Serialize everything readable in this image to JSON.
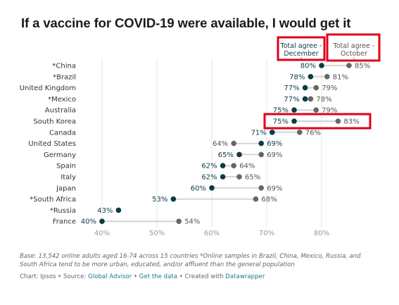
{
  "chart_data": {
    "type": "dot-range",
    "title": "If a vaccine for COVID-19 were available, I would get it",
    "legend": [
      {
        "label_line1": "Total agree -",
        "label_line2": "December",
        "color": "#0d3a45"
      },
      {
        "label_line1": "Total agree -",
        "label_line2": "October",
        "color": "#666666"
      }
    ],
    "x_ticks": [
      40,
      50,
      60,
      70,
      80
    ],
    "x_tick_labels": [
      "40%",
      "50%",
      "60%",
      "70%",
      "80%"
    ],
    "xlim": [
      40,
      80
    ],
    "grid": true,
    "categories": [
      "*China",
      "*Brazil",
      "United Kingdom",
      "*Mexico",
      "Australia",
      "South Korea",
      "Canada",
      "United States",
      "Germany",
      "Spain",
      "Italy",
      "Japan",
      "*South Africa",
      "*Russia",
      "France"
    ],
    "series": [
      {
        "name": "December",
        "values": [
          80,
          78,
          77,
          77,
          75,
          75,
          71,
          69,
          65,
          62,
          62,
          60,
          53,
          43,
          40
        ]
      },
      {
        "name": "October",
        "values": [
          85,
          81,
          79,
          78,
          79,
          83,
          76,
          64,
          69,
          64,
          65,
          69,
          68,
          null,
          54
        ]
      }
    ]
  },
  "annotations": {
    "highlight_color": "#e0001b",
    "highlighted_rows": [
      "South Korea"
    ]
  },
  "footer": {
    "note": "Base: 13,542 online adults aged 16-74 across 15 countries *Online samples in Brazil, China, Mexico, Russia, and South Africa tend to be more urban, educated, and/or affluent than the general population",
    "chart_by": "Chart: Ipsos",
    "sep": " • ",
    "source_label": "Source: ",
    "source_link": "Global Advisor",
    "get_data": "Get the data",
    "created_with": "Created with ",
    "tool": "Datawrapper"
  }
}
